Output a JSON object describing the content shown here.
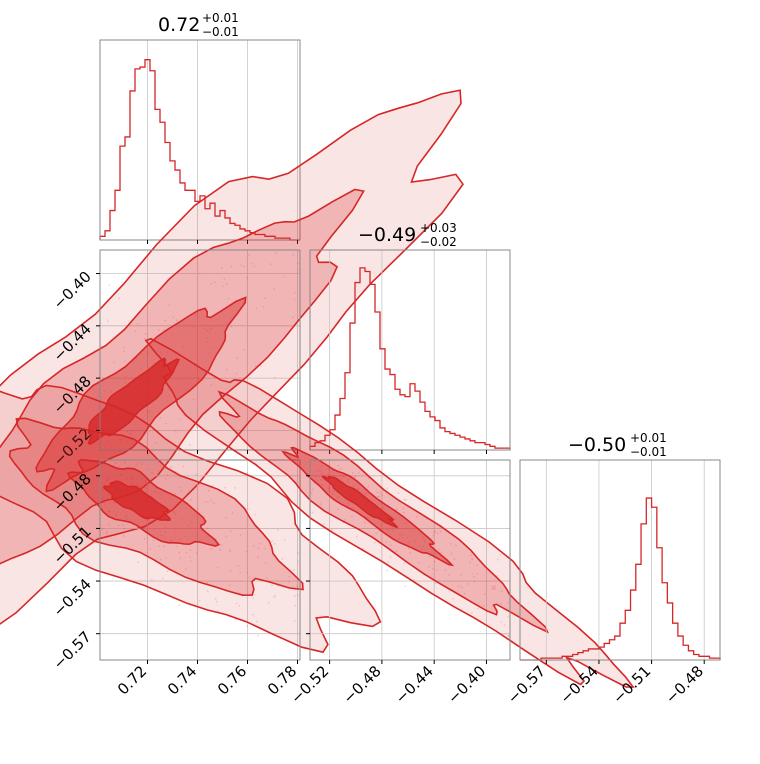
{
  "accent_color": "#d62728",
  "chart_data": {
    "type": "corner",
    "grid": true,
    "parameters": [
      {
        "title_value": "0.72",
        "title_plus": "+0.01",
        "title_minus": "−0.01",
        "range": [
          0.701,
          0.781
        ]
      },
      {
        "title_value": "−0.49",
        "title_plus": "+0.03",
        "title_minus": "−0.02",
        "range": [
          -0.535,
          -0.382
        ]
      },
      {
        "title_value": "−0.50",
        "title_plus": "+0.01",
        "title_minus": "−0.01",
        "range": [
          -0.585,
          -0.471
        ]
      }
    ],
    "x_ticks": [
      {
        "values": [
          0.72,
          0.74,
          0.76,
          0.78
        ],
        "labels": [
          "0.72",
          "0.74",
          "0.76",
          "0.78"
        ]
      },
      {
        "values": [
          -0.52,
          -0.48,
          -0.44,
          -0.4
        ],
        "labels": [
          "−0.52",
          "−0.48",
          "−0.44",
          "−0.40"
        ]
      },
      {
        "values": [
          -0.57,
          -0.54,
          -0.51,
          -0.48
        ],
        "labels": [
          "−0.57",
          "−0.54",
          "−0.51",
          "−0.48"
        ]
      }
    ],
    "y_ticks": [
      null,
      {
        "values": [
          -0.4,
          -0.44,
          -0.48,
          -0.52
        ],
        "labels": [
          "−0.40",
          "−0.44",
          "−0.48",
          "−0.52"
        ]
      },
      {
        "values": [
          -0.48,
          -0.51,
          -0.54,
          -0.57
        ],
        "labels": [
          "−0.48",
          "−0.51",
          "−0.54",
          "−0.57"
        ]
      }
    ],
    "histograms": [
      {
        "bins": [
          0.701,
          0.781
        ],
        "counts": [
          0.02,
          0.05,
          0.16,
          0.27,
          0.51,
          0.56,
          0.81,
          0.93,
          0.94,
          0.98,
          0.92,
          0.71,
          0.64,
          0.53,
          0.43,
          0.38,
          0.31,
          0.27,
          0.27,
          0.21,
          0.24,
          0.17,
          0.2,
          0.13,
          0.16,
          0.12,
          0.09,
          0.08,
          0.06,
          0.05,
          0.04,
          0.03,
          0.03,
          0.02,
          0.02,
          0.01,
          0.01,
          0.01,
          0.0,
          0.0
        ]
      },
      {
        "bins": [
          -0.535,
          -0.382
        ],
        "counts": [
          0.02,
          0.04,
          0.05,
          0.08,
          0.11,
          0.19,
          0.28,
          0.42,
          0.69,
          0.91,
          0.99,
          0.97,
          0.9,
          0.75,
          0.55,
          0.44,
          0.41,
          0.33,
          0.3,
          0.29,
          0.36,
          0.32,
          0.26,
          0.21,
          0.18,
          0.16,
          0.12,
          0.1,
          0.09,
          0.08,
          0.07,
          0.06,
          0.05,
          0.04,
          0.04,
          0.03,
          0.02,
          0.01,
          0.01,
          0.01
        ]
      },
      {
        "bins": [
          -0.585,
          -0.471
        ],
        "counts": [
          0.0,
          0.0,
          0.0,
          0.0,
          0.01,
          0.01,
          0.01,
          0.01,
          0.02,
          0.02,
          0.03,
          0.04,
          0.05,
          0.06,
          0.06,
          0.07,
          0.09,
          0.11,
          0.13,
          0.2,
          0.27,
          0.38,
          0.52,
          0.74,
          0.88,
          0.83,
          0.61,
          0.42,
          0.31,
          0.2,
          0.13,
          0.08,
          0.05,
          0.03,
          0.02,
          0.02,
          0.01,
          0.01
        ]
      }
    ],
    "correlations": [
      {
        "pair": [
          0,
          1
        ],
        "center": [
          0.7115,
          -0.5005
        ],
        "axis_angle_deg": 42,
        "sd_major": 0.02,
        "sd_minor": 0.006
      },
      {
        "pair": [
          0,
          2
        ],
        "center": [
          0.7145,
          -0.4935
        ],
        "axis_angle_deg": -28,
        "sd_major": 0.012,
        "sd_minor": 0.0045
      },
      {
        "pair": [
          1,
          2
        ],
        "center": [
          -0.5,
          -0.4925
        ],
        "axis_angle_deg": -35,
        "sd_major": 0.028,
        "sd_minor": 0.0045
      }
    ]
  }
}
